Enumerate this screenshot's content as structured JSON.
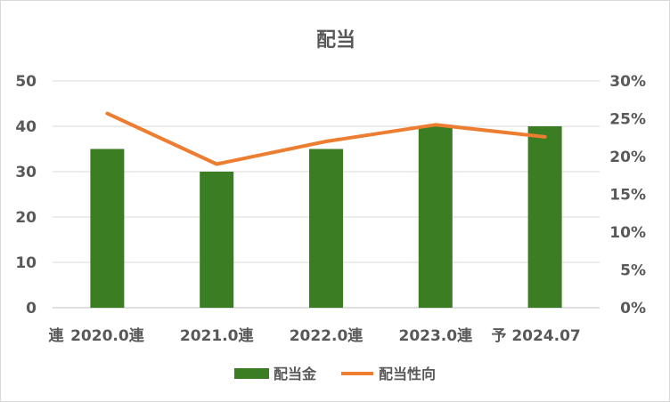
{
  "chart_data": {
    "type": "bar",
    "title": "配当",
    "categories": [
      "2020.0連",
      "2021.0連",
      "2022.0連",
      "2023.0連",
      "予 2024.07"
    ],
    "x_prefix_label": "連",
    "series": [
      {
        "name": "配当金",
        "type": "bar",
        "axis": "left",
        "color": "#3a7d22",
        "values": [
          35,
          30,
          35,
          40,
          40
        ]
      },
      {
        "name": "配当性向",
        "type": "line",
        "axis": "right",
        "color": "#ed7d31",
        "values": [
          0.257,
          0.19,
          0.22,
          0.242,
          0.226
        ]
      }
    ],
    "y_left": {
      "min": 0,
      "max": 50,
      "step": 10,
      "ticks": [
        "0",
        "10",
        "20",
        "30",
        "40",
        "50"
      ]
    },
    "y_right": {
      "min": 0,
      "max": 0.3,
      "step": 0.05,
      "ticks": [
        "0%",
        "5%",
        "10%",
        "15%",
        "20%",
        "25%",
        "30%"
      ]
    },
    "grid": true,
    "legend_position": "bottom"
  }
}
